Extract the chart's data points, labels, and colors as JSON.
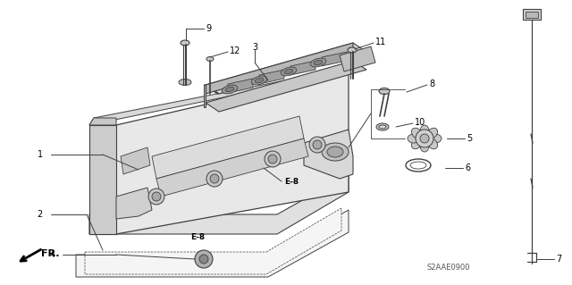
{
  "bg_color": "#ffffff",
  "line_color": "#404040",
  "light_gray": "#d8d8d8",
  "mid_gray": "#b8b8b8",
  "dark_gray": "#888888",
  "text_color": "#000000",
  "label_eb": "E-8",
  "watermark": "S2AAE0900",
  "fr_label": "FR.",
  "fig_width": 6.4,
  "fig_height": 3.19,
  "dpi": 100
}
